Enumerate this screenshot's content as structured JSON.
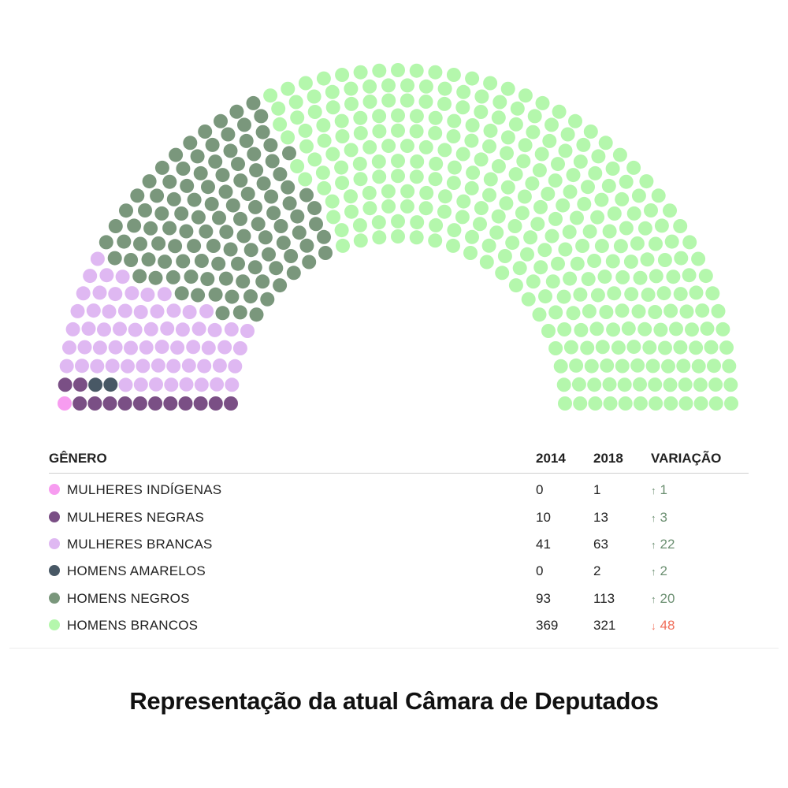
{
  "chart_data": {
    "type": "hemicycle",
    "total_seats": 513,
    "seat_order": [
      "mulheres_indigenas",
      "mulheres_negras",
      "homens_amarelos",
      "mulheres_brancas",
      "homens_negros",
      "homens_brancos"
    ],
    "categories": [
      {
        "key": "mulheres_indigenas",
        "label": "MULHERES INDÍGENAS",
        "color": "#f79cf0",
        "y2014": "0",
        "y2018": "1",
        "variation": "1",
        "direction": "up",
        "seats": 1
      },
      {
        "key": "mulheres_negras",
        "label": "MULHERES NEGRAS",
        "color": "#7a4f85",
        "y2014": "10",
        "y2018": "13",
        "variation": "3",
        "direction": "up",
        "seats": 13
      },
      {
        "key": "mulheres_brancas",
        "label": "MULHERES BRANCAS",
        "color": "#dfb8f2",
        "y2014": "41",
        "y2018": "63",
        "variation": "22",
        "direction": "up",
        "seats": 63
      },
      {
        "key": "homens_amarelos",
        "label": "HOMENS AMARELOS",
        "color": "#485865",
        "y2014": "0",
        "y2018": "2",
        "variation": "2",
        "direction": "up",
        "seats": 2
      },
      {
        "key": "homens_negros",
        "label": "HOMENS NEGROS",
        "color": "#7a977c",
        "y2014": "93",
        "y2018": "113",
        "variation": "20",
        "direction": "up",
        "seats": 113
      },
      {
        "key": "homens_brancos",
        "label": "HOMENS BRANCOS",
        "color": "#b4f7ac",
        "y2014": "369",
        "y2018": "321",
        "variation": "48",
        "direction": "down",
        "seats": 321
      }
    ]
  },
  "table": {
    "header_category": "GÊNERO",
    "header_2014": "2014",
    "header_2018": "2018",
    "header_variation": "VARIAÇÃO"
  },
  "icons": {
    "up": "arrow-up-icon",
    "down": "arrow-down-icon"
  },
  "caption": "Representação da atual Câmara de Deputados"
}
